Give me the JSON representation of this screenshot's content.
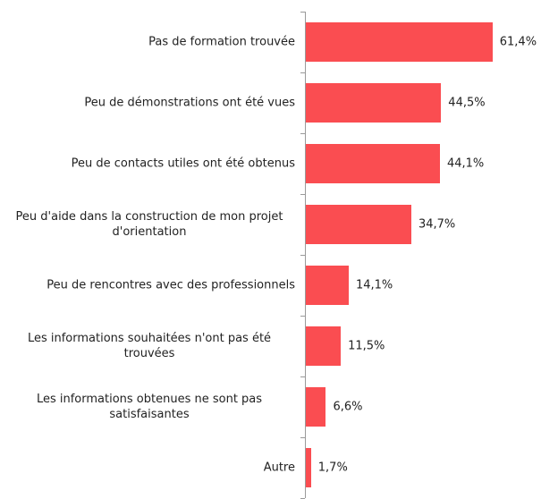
{
  "chart_data": {
    "type": "bar",
    "orientation": "horizontal",
    "categories": [
      "Pas de formation trouvée",
      "Peu de démonstrations ont été vues",
      "Peu de contacts utiles ont été obtenus",
      "Peu d'aide dans la construction de mon projet d'orientation",
      "Peu de rencontres avec des professionnels",
      "Les informations souhaitées n'ont pas été trouvées",
      "Les informations obtenues ne sont pas satisfaisantes",
      "Autre"
    ],
    "values": [
      61.4,
      44.5,
      44.1,
      34.7,
      14.1,
      11.5,
      6.6,
      1.7
    ],
    "value_labels": [
      "61,4%",
      "44,5%",
      "44,1%",
      "34,7%",
      "14,1%",
      "11,5%",
      "6,6%",
      "1,7%"
    ],
    "color": "#fa4d51"
  }
}
